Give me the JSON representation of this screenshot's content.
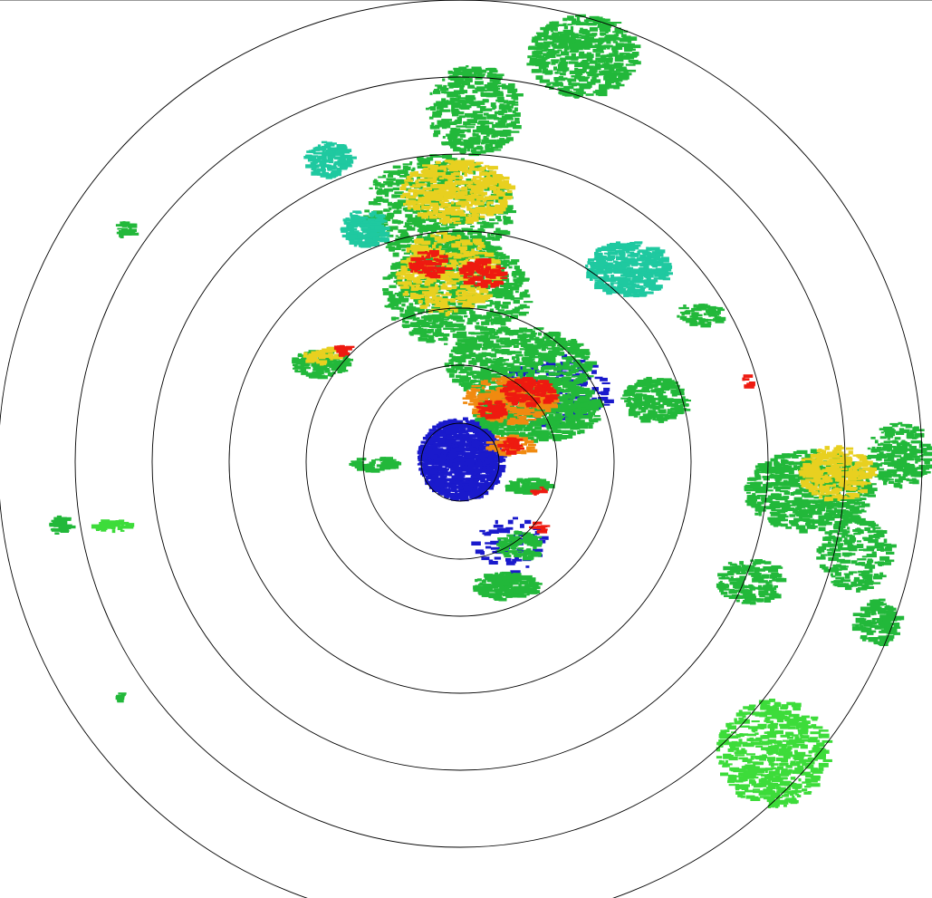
{
  "radar": {
    "range_rings": 7,
    "reflectivity_colors": {
      "weak": "#1a1acc",
      "light": "#1fc9a0",
      "moderate": "#22b83a",
      "bright_green": "#3ddc3a",
      "heavy": "#e8d020",
      "intense": "#f08a10",
      "severe": "#ee1a10"
    },
    "ring_color": "#000000",
    "background": "#ffffff"
  }
}
